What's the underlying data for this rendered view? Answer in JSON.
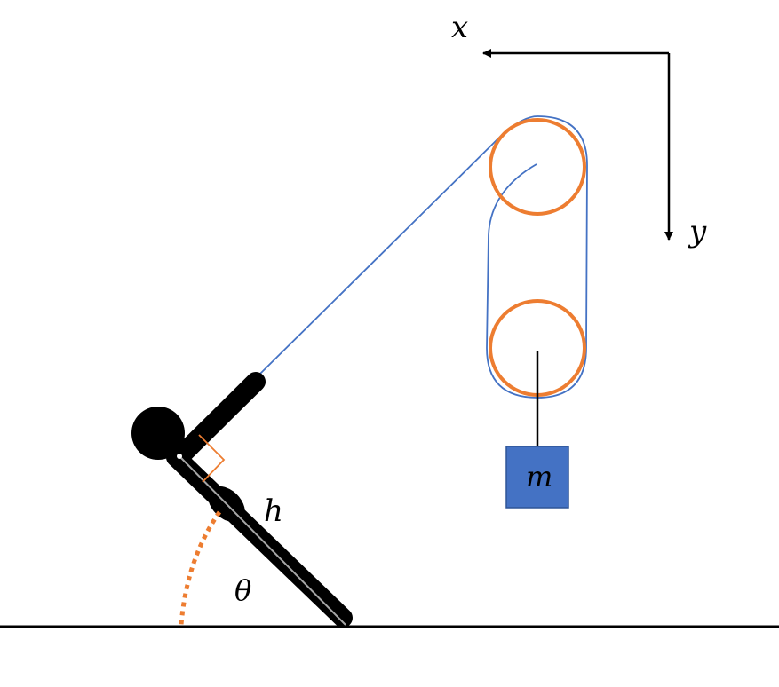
{
  "labels": {
    "x_axis": "x",
    "y_axis": "y",
    "mass": "m",
    "height": "h",
    "angle": "θ"
  },
  "colors": {
    "pulley": "#ED7D31",
    "rope": "#4472C4",
    "mass_fill": "#4472C4",
    "figure": "#000000",
    "angle_arc": "#ED7D31",
    "right_angle_marker": "#ED7D31",
    "ground": "#000000"
  }
}
